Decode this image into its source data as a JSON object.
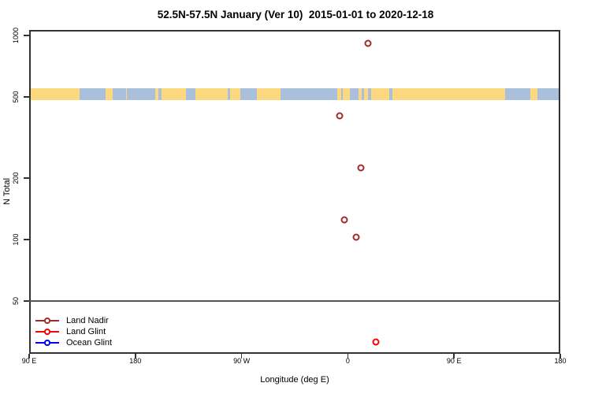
{
  "chart_data": {
    "type": "scatter",
    "title": "52.5N-57.5N January (Ver 10)  2015-01-01 to 2020-12-18",
    "xlabel": "Longitude (deg E)",
    "ylabel": "N Total",
    "x_axis": {
      "scale": "longitude-wrapped",
      "range_deg": [
        90,
        540
      ],
      "ticks": [
        {
          "deg": 90,
          "label": "90 E"
        },
        {
          "deg": 180,
          "label": "180"
        },
        {
          "deg": 270,
          "label": "90 W"
        },
        {
          "deg": 360,
          "label": "0"
        },
        {
          "deg": 450,
          "label": "90 E"
        },
        {
          "deg": 540,
          "label": "180"
        }
      ]
    },
    "y_axis": {
      "scale": "log",
      "range": [
        28,
        1065
      ],
      "ticks": [
        {
          "value": 1000,
          "label": "1000"
        },
        {
          "value": 500,
          "label": "500"
        },
        {
          "value": 200,
          "label": "200"
        },
        {
          "value": 100,
          "label": "100"
        },
        {
          "value": 50,
          "label": "50"
        }
      ]
    },
    "reference_line": {
      "y": 50,
      "color": "#555555"
    },
    "map_strip": {
      "description": "land/ocean world strip for latitude band 52.5N-57.5N",
      "center_value": 510,
      "land_color": "#FCD87E",
      "ocean_color": "#A9BFDB",
      "segments": [
        [
          90,
          133,
          "land"
        ],
        [
          133,
          154.5,
          "ocean"
        ],
        [
          154.5,
          160.5,
          "land"
        ],
        [
          160.5,
          172,
          "ocean"
        ],
        [
          172,
          173,
          "land"
        ],
        [
          173,
          197,
          "ocean"
        ],
        [
          197,
          199.5,
          "land"
        ],
        [
          199.5,
          202,
          "ocean"
        ],
        [
          202,
          223,
          "land"
        ],
        [
          223,
          231,
          "ocean"
        ],
        [
          231,
          258,
          "land"
        ],
        [
          258,
          260.5,
          "ocean"
        ],
        [
          260.5,
          269,
          "land"
        ],
        [
          269,
          283,
          "ocean"
        ],
        [
          283,
          303,
          "land"
        ],
        [
          303,
          351,
          "ocean"
        ],
        [
          351,
          354.5,
          "land"
        ],
        [
          354.5,
          356,
          "ocean"
        ],
        [
          356,
          362,
          "land"
        ],
        [
          362,
          369,
          "ocean"
        ],
        [
          369,
          372,
          "land"
        ],
        [
          372,
          374,
          "ocean"
        ],
        [
          374,
          377,
          "land"
        ],
        [
          377,
          380,
          "ocean"
        ],
        [
          380,
          395,
          "land"
        ],
        [
          395,
          398,
          "ocean"
        ],
        [
          398,
          493,
          "land"
        ],
        [
          493,
          514.5,
          "ocean"
        ],
        [
          514.5,
          520.5,
          "land"
        ],
        [
          520.5,
          540,
          "ocean"
        ]
      ]
    },
    "series": [
      {
        "name": "Land Nadir",
        "color": "#A52A2A",
        "points": [
          {
            "lon_deg_e": 17,
            "n_total": 915
          },
          {
            "lon_deg_e": -7,
            "n_total": 405
          },
          {
            "lon_deg_e": 11,
            "n_total": 225
          },
          {
            "lon_deg_e": -3,
            "n_total": 125
          },
          {
            "lon_deg_e": 7,
            "n_total": 103
          }
        ]
      },
      {
        "name": "Land Glint",
        "color": "#FF0000",
        "points": [
          {
            "lon_deg_e": 24,
            "n_total": 31.5
          }
        ]
      },
      {
        "name": "Ocean Glint",
        "color": "#0000FF",
        "points": []
      }
    ]
  },
  "legend": {
    "items": [
      {
        "label": "Land Nadir",
        "color": "#A52A2A"
      },
      {
        "label": "Land Glint",
        "color": "#FF0000"
      },
      {
        "label": "Ocean Glint",
        "color": "#0000FF"
      }
    ]
  }
}
